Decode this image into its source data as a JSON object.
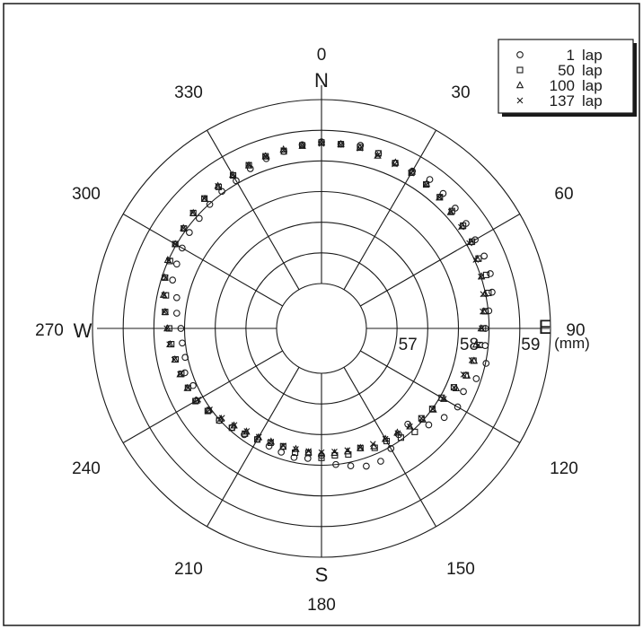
{
  "chart_data": {
    "type": "scatter",
    "coordinate_system": "polar",
    "angular_axis": {
      "direction": "clockwise",
      "zero_at": "top",
      "tick_labels": [
        "0",
        "30",
        "60",
        "90",
        "120",
        "150",
        "180",
        "210",
        "240",
        "270",
        "300",
        "330"
      ],
      "tick_values": [
        0,
        30,
        60,
        90,
        120,
        150,
        180,
        210,
        240,
        270,
        300,
        330
      ]
    },
    "compass": {
      "north": "N",
      "east": "E",
      "south": "S",
      "west": "W"
    },
    "radial_axis": {
      "min": 56.5,
      "max": 59.5,
      "ring_values": [
        57,
        57.5,
        58,
        58.5,
        59,
        59.5
      ],
      "tick_labels": [
        "57",
        "58",
        "59"
      ],
      "tick_values": [
        57,
        58,
        59
      ],
      "unit": "(mm)"
    },
    "grid": true,
    "legend_position": "top-right",
    "series": [
      {
        "name": "1 lap",
        "marker": "circle",
        "points": [
          [
            6,
            58.79
          ],
          [
            12,
            58.82
          ],
          [
            18,
            58.77
          ],
          [
            24,
            58.72
          ],
          [
            30,
            58.73
          ],
          [
            36,
            58.77
          ],
          [
            42,
            58.73
          ],
          [
            48,
            58.7
          ],
          [
            54,
            58.68
          ],
          [
            60,
            58.66
          ],
          [
            66,
            58.67
          ],
          [
            72,
            58.66
          ],
          [
            78,
            58.61
          ],
          [
            84,
            58.51
          ],
          [
            90,
            58.44
          ],
          [
            96,
            58.45
          ],
          [
            102,
            58.51
          ],
          [
            108,
            58.42
          ],
          [
            114,
            58.3
          ],
          [
            120,
            58.33
          ],
          [
            126,
            58.24
          ],
          [
            132,
            58.12
          ],
          [
            138,
            57.87
          ],
          [
            144,
            57.91
          ],
          [
            150,
            58.03
          ],
          [
            156,
            58.14
          ],
          [
            162,
            58.13
          ],
          [
            168,
            58.06
          ],
          [
            174,
            58.0
          ],
          [
            180,
            57.84
          ],
          [
            186,
            57.9
          ],
          [
            192,
            57.92
          ],
          [
            198,
            57.89
          ],
          [
            204,
            57.87
          ],
          [
            210,
            57.85
          ],
          [
            216,
            57.91
          ],
          [
            222,
            57.94
          ],
          [
            228,
            58.01
          ],
          [
            234,
            58.04
          ],
          [
            240,
            58.12
          ],
          [
            246,
            58.06
          ],
          [
            252,
            58.11
          ],
          [
            258,
            58.04
          ],
          [
            264,
            58.05
          ],
          [
            270,
            58.06
          ],
          [
            276,
            58.14
          ],
          [
            282,
            58.18
          ],
          [
            288,
            58.32
          ],
          [
            294,
            58.35
          ],
          [
            300,
            58.39
          ],
          [
            306,
            58.43
          ],
          [
            312,
            58.45
          ],
          [
            318,
            58.49
          ],
          [
            324,
            58.53
          ],
          [
            330,
            58.55
          ],
          [
            336,
            58.62
          ],
          [
            342,
            58.68
          ],
          [
            348,
            58.72
          ],
          [
            354,
            58.78
          ],
          [
            0,
            58.81
          ]
        ]
      },
      {
        "name": "50 lap",
        "marker": "square",
        "points": [
          [
            6,
            58.79
          ],
          [
            12,
            58.79
          ],
          [
            18,
            58.77
          ],
          [
            24,
            58.72
          ],
          [
            30,
            58.7
          ],
          [
            36,
            58.67
          ],
          [
            42,
            58.65
          ],
          [
            48,
            58.63
          ],
          [
            54,
            58.62
          ],
          [
            60,
            58.6
          ],
          [
            66,
            58.57
          ],
          [
            72,
            58.59
          ],
          [
            78,
            58.55
          ],
          [
            84,
            58.45
          ],
          [
            90,
            58.4
          ],
          [
            96,
            58.36
          ],
          [
            102,
            58.3
          ],
          [
            108,
            58.24
          ],
          [
            114,
            58.13
          ],
          [
            120,
            58.03
          ],
          [
            126,
            58.0
          ],
          [
            132,
            57.96
          ],
          [
            138,
            58.04
          ],
          [
            144,
            57.97
          ],
          [
            150,
            57.89
          ],
          [
            156,
            57.9
          ],
          [
            162,
            57.82
          ],
          [
            168,
            57.87
          ],
          [
            174,
            57.85
          ],
          [
            180,
            57.88
          ],
          [
            186,
            57.81
          ],
          [
            192,
            57.84
          ],
          [
            198,
            57.79
          ],
          [
            204,
            57.81
          ],
          [
            210,
            57.86
          ],
          [
            216,
            57.89
          ],
          [
            222,
            57.95
          ],
          [
            228,
            58.01
          ],
          [
            234,
            58.06
          ],
          [
            240,
            58.14
          ],
          [
            246,
            58.15
          ],
          [
            252,
            58.17
          ],
          [
            258,
            58.2
          ],
          [
            264,
            58.23
          ],
          [
            270,
            58.25
          ],
          [
            276,
            58.33
          ],
          [
            282,
            58.36
          ],
          [
            288,
            58.45
          ],
          [
            294,
            58.47
          ],
          [
            300,
            58.52
          ],
          [
            306,
            58.54
          ],
          [
            312,
            58.58
          ],
          [
            318,
            58.62
          ],
          [
            324,
            58.62
          ],
          [
            330,
            58.65
          ],
          [
            336,
            58.68
          ],
          [
            342,
            58.72
          ],
          [
            348,
            58.72
          ],
          [
            354,
            58.77
          ],
          [
            0,
            58.8
          ]
        ]
      },
      {
        "name": "100 lap",
        "marker": "triangle",
        "points": [
          [
            6,
            58.79
          ],
          [
            12,
            58.78
          ],
          [
            18,
            58.73
          ],
          [
            24,
            58.73
          ],
          [
            30,
            58.72
          ],
          [
            36,
            58.68
          ],
          [
            42,
            58.64
          ],
          [
            48,
            58.6
          ],
          [
            54,
            58.6
          ],
          [
            60,
            58.58
          ],
          [
            66,
            58.55
          ],
          [
            72,
            58.51
          ],
          [
            78,
            58.49
          ],
          [
            84,
            58.43
          ],
          [
            90,
            58.37
          ],
          [
            96,
            58.3
          ],
          [
            102,
            58.31
          ],
          [
            108,
            58.26
          ],
          [
            114,
            58.17
          ],
          [
            120,
            58.07
          ],
          [
            126,
            58.02
          ],
          [
            132,
            57.99
          ],
          [
            138,
            57.92
          ],
          [
            144,
            57.87
          ],
          [
            150,
            57.85
          ],
          [
            156,
            57.87
          ],
          [
            162,
            57.82
          ],
          [
            168,
            57.82
          ],
          [
            174,
            57.81
          ],
          [
            180,
            57.81
          ],
          [
            186,
            57.8
          ],
          [
            192,
            57.78
          ],
          [
            198,
            57.8
          ],
          [
            204,
            57.79
          ],
          [
            210,
            57.82
          ],
          [
            216,
            57.85
          ],
          [
            222,
            57.9
          ],
          [
            228,
            57.97
          ],
          [
            234,
            58.04
          ],
          [
            240,
            58.12
          ],
          [
            246,
            58.16
          ],
          [
            252,
            58.19
          ],
          [
            258,
            58.21
          ],
          [
            264,
            58.25
          ],
          [
            270,
            58.28
          ],
          [
            276,
            58.33
          ],
          [
            282,
            58.4
          ],
          [
            288,
            58.46
          ],
          [
            294,
            58.51
          ],
          [
            300,
            58.52
          ],
          [
            306,
            58.55
          ],
          [
            312,
            58.58
          ],
          [
            318,
            58.61
          ],
          [
            324,
            58.64
          ],
          [
            330,
            58.66
          ],
          [
            336,
            58.68
          ],
          [
            342,
            58.72
          ],
          [
            348,
            58.75
          ],
          [
            354,
            58.76
          ],
          [
            0,
            58.8
          ]
        ]
      },
      {
        "name": "137 lap",
        "marker": "cross",
        "points": [
          [
            6,
            58.78
          ],
          [
            12,
            58.77
          ],
          [
            18,
            58.74
          ],
          [
            24,
            58.7
          ],
          [
            30,
            58.69
          ],
          [
            36,
            58.67
          ],
          [
            42,
            58.64
          ],
          [
            48,
            58.61
          ],
          [
            54,
            58.58
          ],
          [
            60,
            58.55
          ],
          [
            66,
            58.52
          ],
          [
            72,
            58.5
          ],
          [
            78,
            58.46
          ],
          [
            84,
            58.41
          ],
          [
            90,
            58.38
          ],
          [
            96,
            58.34
          ],
          [
            102,
            58.27
          ],
          [
            108,
            58.2
          ],
          [
            114,
            58.13
          ],
          [
            120,
            58.07
          ],
          [
            126,
            58.01
          ],
          [
            132,
            57.96
          ],
          [
            138,
            57.92
          ],
          [
            144,
            57.88
          ],
          [
            150,
            57.85
          ],
          [
            156,
            57.83
          ],
          [
            162,
            57.81
          ],
          [
            168,
            57.8
          ],
          [
            174,
            57.79
          ],
          [
            180,
            57.79
          ],
          [
            186,
            57.78
          ],
          [
            192,
            57.78
          ],
          [
            198,
            57.78
          ],
          [
            204,
            57.79
          ],
          [
            210,
            57.81
          ],
          [
            216,
            57.84
          ],
          [
            222,
            57.89
          ],
          [
            228,
            57.95
          ],
          [
            234,
            58.02
          ],
          [
            240,
            58.09
          ],
          [
            246,
            58.15
          ],
          [
            252,
            58.19
          ],
          [
            258,
            58.22
          ],
          [
            264,
            58.26
          ],
          [
            270,
            58.29
          ],
          [
            276,
            58.34
          ],
          [
            282,
            58.39
          ],
          [
            288,
            58.44
          ],
          [
            294,
            58.49
          ],
          [
            300,
            58.52
          ],
          [
            306,
            58.55
          ],
          [
            312,
            58.59
          ],
          [
            318,
            58.62
          ],
          [
            324,
            58.64
          ],
          [
            330,
            58.66
          ],
          [
            336,
            58.69
          ],
          [
            342,
            58.71
          ],
          [
            348,
            58.74
          ],
          [
            354,
            58.76
          ],
          [
            0,
            58.78
          ]
        ]
      }
    ]
  },
  "legend": {
    "items": [
      {
        "symbol": "circle",
        "number": "1",
        "unit": "lap"
      },
      {
        "symbol": "square",
        "number": "50",
        "unit": "lap"
      },
      {
        "symbol": "triangle",
        "number": "100",
        "unit": "lap"
      },
      {
        "symbol": "cross",
        "number": "137",
        "unit": "lap"
      }
    ]
  }
}
